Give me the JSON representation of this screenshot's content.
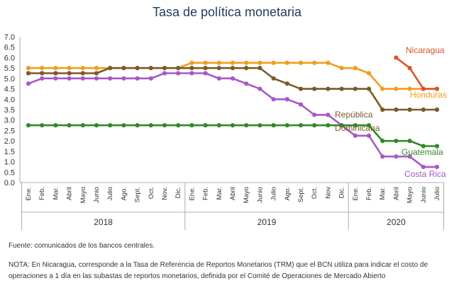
{
  "chart_data": {
    "type": "line",
    "title": "Tasa de política monetaria",
    "ylim": [
      0,
      7
    ],
    "yticks": [
      "0.0",
      "0.5",
      "1.0",
      "1.5",
      "2.0",
      "2.5",
      "3.0",
      "3.5",
      "4.0",
      "4.5",
      "5.0",
      "5.5",
      "6.0",
      "6.5",
      "7.0"
    ],
    "categories": [
      "Ene.",
      "Feb.",
      "Mar.",
      "Abril",
      "Mayo",
      "Junio",
      "Julio",
      "Ago.",
      "Sept.",
      "Oct.",
      "Nov.",
      "Dic.",
      "Ene.",
      "Feb.",
      "Mar.",
      "Abril",
      "Mayo",
      "Junio",
      "Julio",
      "Ago.",
      "Sept.",
      "Oct.",
      "Nov",
      "Dic.",
      "Ene.",
      "Feb.",
      "Mar.",
      "Abril",
      "Mayo",
      "Junio",
      "Julio"
    ],
    "year_groups": [
      {
        "label": "2018",
        "start": 0,
        "end": 11
      },
      {
        "label": "2019",
        "start": 12,
        "end": 23
      },
      {
        "label": "2020",
        "start": 24,
        "end": 30
      }
    ],
    "grid": false,
    "series": [
      {
        "name": "Honduras",
        "color": "#f39c1e",
        "values": [
          5.5,
          5.5,
          5.5,
          5.5,
          5.5,
          5.5,
          5.5,
          5.5,
          5.5,
          5.5,
          5.5,
          5.5,
          5.75,
          5.75,
          5.75,
          5.75,
          5.75,
          5.75,
          5.75,
          5.75,
          5.75,
          5.75,
          5.75,
          5.5,
          5.5,
          5.25,
          4.5,
          4.5,
          4.5,
          4.5,
          4.5
        ]
      },
      {
        "name": "República Dominicana",
        "name_lines": [
          "República",
          "Dominicana"
        ],
        "color": "#7a5a28",
        "values": [
          5.25,
          5.25,
          5.25,
          5.25,
          5.25,
          5.25,
          5.5,
          5.5,
          5.5,
          5.5,
          5.5,
          5.5,
          5.5,
          5.5,
          5.5,
          5.5,
          5.5,
          5.5,
          5.0,
          4.75,
          4.5,
          4.5,
          4.5,
          4.5,
          4.5,
          4.5,
          3.5,
          3.5,
          3.5,
          3.5,
          3.5
        ]
      },
      {
        "name": "Costa Rica",
        "color": "#a957c6",
        "values": [
          4.75,
          5.0,
          5.0,
          5.0,
          5.0,
          5.0,
          5.0,
          5.0,
          5.0,
          5.0,
          5.25,
          5.25,
          5.25,
          5.25,
          5.0,
          5.0,
          4.75,
          4.5,
          4.0,
          4.0,
          3.75,
          3.25,
          3.25,
          2.75,
          2.25,
          2.25,
          1.25,
          1.25,
          1.25,
          0.75,
          0.75
        ]
      },
      {
        "name": "Guatemala",
        "color": "#2e8b24",
        "values": [
          2.75,
          2.75,
          2.75,
          2.75,
          2.75,
          2.75,
          2.75,
          2.75,
          2.75,
          2.75,
          2.75,
          2.75,
          2.75,
          2.75,
          2.75,
          2.75,
          2.75,
          2.75,
          2.75,
          2.75,
          2.75,
          2.75,
          2.75,
          2.75,
          2.75,
          2.75,
          2.0,
          2.0,
          2.0,
          1.75,
          1.75
        ]
      },
      {
        "name": "Nicaragua",
        "color": "#d9542b",
        "values": [
          null,
          null,
          null,
          null,
          null,
          null,
          null,
          null,
          null,
          null,
          null,
          null,
          null,
          null,
          null,
          null,
          null,
          null,
          null,
          null,
          null,
          null,
          null,
          null,
          null,
          null,
          null,
          6.0,
          5.5,
          4.5,
          4.5
        ]
      }
    ]
  },
  "footer": {
    "source": "Fuente: comunicados de los bancos centrales.",
    "note": "NOTA: En Nicaragua, corresponde a la Tasa de Referencia de Reportos Monetarios (TRM) que el BCN utiliza para indicar el costo de operaciones a 1 día en las subastas de reportos monetarios, definida por el Comité de Operaciones de Mercado Abierto"
  }
}
